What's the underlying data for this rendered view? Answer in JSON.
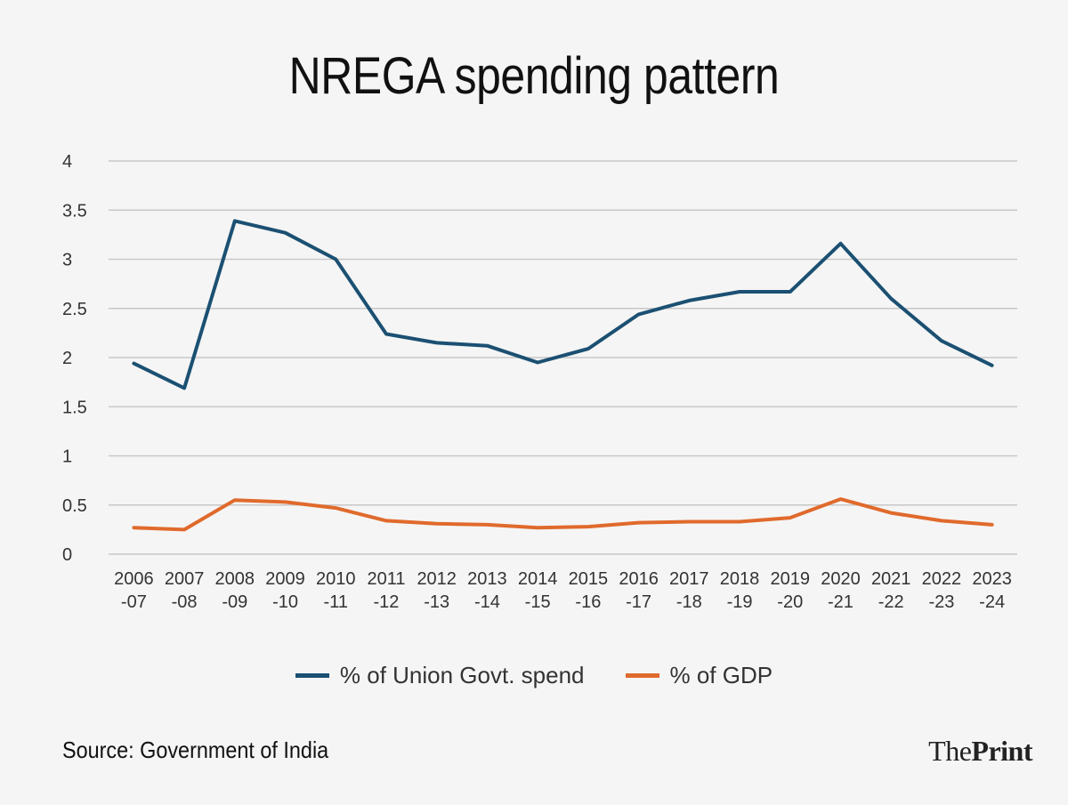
{
  "title": "NREGA spending pattern",
  "source": "Source: Government of India",
  "logo": {
    "part1": "The",
    "part2": "Print"
  },
  "colors": {
    "series1": "#1b5072",
    "series2": "#e06a2c",
    "grid": "#c8c8c8",
    "background": "#f5f5f5"
  },
  "chart_data": {
    "type": "line",
    "categories": [
      [
        "2006",
        "-07"
      ],
      [
        "2007",
        "-08"
      ],
      [
        "2008",
        "-09"
      ],
      [
        "2009",
        "-10"
      ],
      [
        "2010",
        "-11"
      ],
      [
        "2011",
        "-12"
      ],
      [
        "2012",
        "-13"
      ],
      [
        "2013",
        "-14"
      ],
      [
        "2014",
        "-15"
      ],
      [
        "2015",
        "-16"
      ],
      [
        "2016",
        "-17"
      ],
      [
        "2017",
        "-18"
      ],
      [
        "2018",
        "-19"
      ],
      [
        "2019",
        "-20"
      ],
      [
        "2020",
        "-21"
      ],
      [
        "2021",
        "-22"
      ],
      [
        "2022",
        "-23"
      ],
      [
        "2023",
        "-24"
      ]
    ],
    "ylim": [
      0,
      4
    ],
    "yticks": [
      "0",
      "0.5",
      "1",
      "1.5",
      "2",
      "2.5",
      "3",
      "3.5",
      "4"
    ],
    "grid": true,
    "legend_position": "bottom",
    "series": [
      {
        "name": "% of Union Govt. spend",
        "values": [
          1.94,
          1.69,
          3.39,
          3.27,
          3.0,
          2.24,
          2.15,
          2.12,
          1.95,
          2.09,
          2.44,
          2.58,
          2.67,
          2.67,
          3.16,
          2.6,
          2.17,
          1.92
        ]
      },
      {
        "name": "% of GDP",
        "values": [
          0.27,
          0.25,
          0.55,
          0.53,
          0.47,
          0.34,
          0.31,
          0.3,
          0.27,
          0.28,
          0.32,
          0.33,
          0.33,
          0.37,
          0.56,
          0.42,
          0.34,
          0.3
        ]
      }
    ]
  }
}
